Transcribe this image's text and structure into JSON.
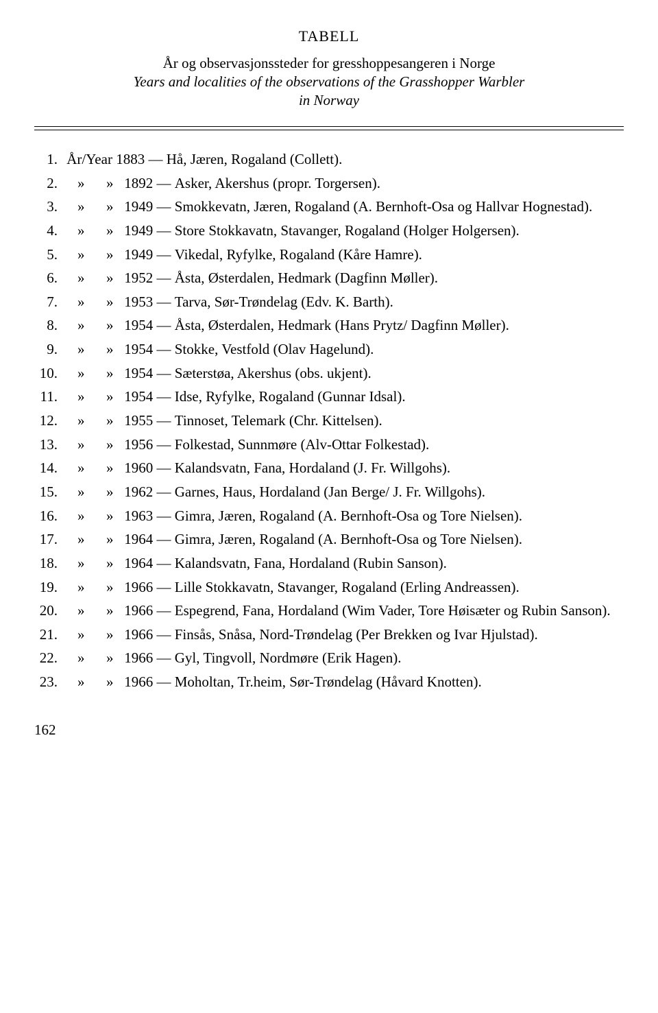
{
  "title": "TABELL",
  "subtitle_nor": "År og observasjonssteder for gresshoppesangeren i Norge",
  "subtitle_eng_line1": "Years and localities of the observations of the Grasshopper Warbler",
  "subtitle_eng_line2": "in Norway",
  "year_label": "År/Year",
  "ditto": "»",
  "dash": "—",
  "entries": [
    {
      "num": "1.",
      "first": true,
      "year": "1883",
      "desc": "Hå, Jæren, Rogaland (Collett)."
    },
    {
      "num": "2.",
      "year": "1892",
      "desc": "Asker, Akershus (propr. Torgersen)."
    },
    {
      "num": "3.",
      "year": "1949",
      "desc": "Smokkevatn, Jæren, Rogaland (A. Bernhoft-Osa og Hallvar Hognestad)."
    },
    {
      "num": "4.",
      "year": "1949",
      "desc": "Store Stokkavatn, Stavanger, Rogaland (Holger Holgersen)."
    },
    {
      "num": "5.",
      "year": "1949",
      "desc": "Vikedal, Ryfylke, Rogaland (Kåre Hamre)."
    },
    {
      "num": "6.",
      "year": "1952",
      "desc": "Åsta, Østerdalen, Hedmark (Dagfinn Møller)."
    },
    {
      "num": "7.",
      "year": "1953",
      "desc": "Tarva, Sør-Trøndelag (Edv. K. Barth)."
    },
    {
      "num": "8.",
      "year": "1954",
      "desc": "Åsta, Østerdalen, Hedmark (Hans Prytz/ Dagfinn Møller)."
    },
    {
      "num": "9.",
      "year": "1954",
      "desc": "Stokke, Vestfold (Olav Hagelund)."
    },
    {
      "num": "10.",
      "year": "1954",
      "desc": "Sæterstøa, Akershus (obs. ukjent)."
    },
    {
      "num": "11.",
      "year": "1954",
      "desc": "Idse, Ryfylke, Rogaland (Gunnar Idsal)."
    },
    {
      "num": "12.",
      "year": "1955",
      "desc": "Tinnoset, Telemark (Chr. Kittelsen)."
    },
    {
      "num": "13.",
      "year": "1956",
      "desc": "Folkestad, Sunnmøre (Alv-Ottar Folkestad)."
    },
    {
      "num": "14.",
      "year": "1960",
      "desc": "Kalandsvatn, Fana, Hordaland (J. Fr. Willgohs)."
    },
    {
      "num": "15.",
      "year": "1962",
      "desc": "Garnes, Haus, Hordaland (Jan Berge/ J. Fr. Willgohs)."
    },
    {
      "num": "16.",
      "year": "1963",
      "desc": "Gimra, Jæren, Rogaland (A. Bernhoft-Osa og Tore Nielsen)."
    },
    {
      "num": "17.",
      "year": "1964",
      "desc": "Gimra, Jæren, Rogaland (A. Bernhoft-Osa og Tore Nielsen)."
    },
    {
      "num": "18.",
      "year": "1964",
      "desc": "Kalandsvatn, Fana, Hordaland (Rubin Sanson)."
    },
    {
      "num": "19.",
      "year": "1966",
      "desc": "Lille Stokkavatn, Stavanger, Rogaland (Erling Andreassen)."
    },
    {
      "num": "20.",
      "year": "1966",
      "desc": "Espegrend, Fana, Hordaland (Wim Vader, Tore Høisæter og Rubin Sanson)."
    },
    {
      "num": "21.",
      "year": "1966",
      "desc": "Finsås, Snåsa, Nord-Trøndelag (Per Brekken og Ivar Hjulstad)."
    },
    {
      "num": "22.",
      "year": "1966",
      "desc": "Gyl, Tingvoll, Nordmøre (Erik Hagen)."
    },
    {
      "num": "23.",
      "year": "1966",
      "desc": "Moholtan, Tr.heim, Sør-Trøndelag (Håvard Knotten)."
    }
  ],
  "page_number": "162"
}
